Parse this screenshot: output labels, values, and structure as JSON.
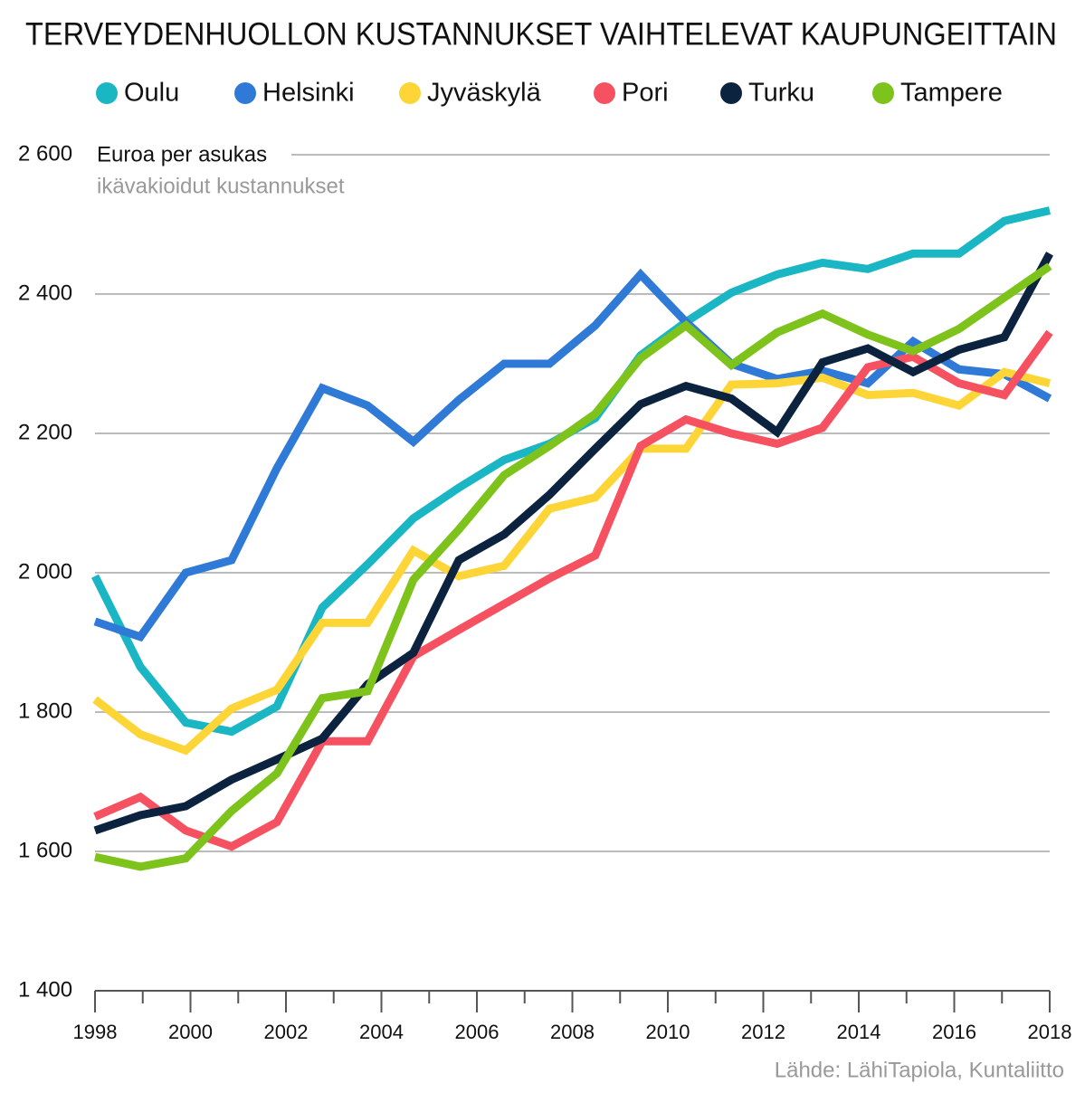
{
  "chart_data": {
    "type": "line",
    "title": "TERVEYDENHUOLLON KUSTANNUKSET VAIHTELEVAT KAUPUNGEITTAIN",
    "annotations": [
      "Euroa per asukas",
      "ikävakioidut kustannukset"
    ],
    "source": "Lähde: LähiTapiola, Kuntaliitto",
    "x": [
      1998,
      1998.95,
      1999.9,
      2000.86,
      2001.81,
      2002.76,
      2003.71,
      2004.67,
      2005.62,
      2006.57,
      2007.52,
      2008.48,
      2009.43,
      2010.38,
      2011.33,
      2012.29,
      2013.24,
      2014.19,
      2015.14,
      2016.1,
      2017.05,
      2018
    ],
    "xlim": [
      1998,
      2018
    ],
    "xticks": [
      1998,
      2000,
      2002,
      2004,
      2006,
      2008,
      2010,
      2012,
      2014,
      2016,
      2018
    ],
    "ylim": [
      1400,
      2600
    ],
    "yticks": [
      {
        "value": 1400,
        "label": "1 400"
      },
      {
        "value": 1600,
        "label": "1 600"
      },
      {
        "value": 1800,
        "label": "1 800"
      },
      {
        "value": 2000,
        "label": "2 000"
      },
      {
        "value": 2200,
        "label": "2 200"
      },
      {
        "value": 2400,
        "label": "2 400"
      },
      {
        "value": 2600,
        "label": "2 600"
      }
    ],
    "grid": true,
    "legend": "top",
    "series": [
      {
        "name": "Oulu",
        "color": "#1ab6c4",
        "values": [
          1995,
          1865,
          1785,
          1772,
          1808,
          1950,
          2012,
          2078,
          2122,
          2162,
          2185,
          2222,
          2312,
          2360,
          2402,
          2428,
          2445,
          2436,
          2458,
          2458,
          2505,
          2520
        ]
      },
      {
        "name": "Helsinki",
        "color": "#2f7ad6",
        "values": [
          1930,
          1908,
          2000,
          2018,
          2150,
          2265,
          2240,
          2188,
          2248,
          2300,
          2300,
          2355,
          2428,
          2360,
          2300,
          2278,
          2290,
          2272,
          2332,
          2292,
          2285,
          2250
        ]
      },
      {
        "name": "Jyväskylä",
        "color": "#fdd537",
        "values": [
          1818,
          1768,
          1745,
          1805,
          1832,
          1928,
          1928,
          2032,
          1995,
          2010,
          2092,
          2108,
          2178,
          2178,
          2270,
          2272,
          2280,
          2255,
          2258,
          2240,
          2288,
          2272
        ]
      },
      {
        "name": "Pori",
        "color": "#f65161",
        "values": [
          1650,
          1678,
          1630,
          1607,
          1642,
          1758,
          1758,
          1880,
          1918,
          1955,
          1992,
          2025,
          2182,
          2220,
          2200,
          2185,
          2208,
          2295,
          2310,
          2272,
          2255,
          2345
        ]
      },
      {
        "name": "Turku",
        "color": "#0c2340",
        "values": [
          1630,
          1652,
          1665,
          1703,
          1732,
          1762,
          1840,
          1885,
          2018,
          2055,
          2112,
          2178,
          2242,
          2268,
          2250,
          2202,
          2302,
          2322,
          2288,
          2320,
          2338,
          2458
        ]
      },
      {
        "name": "Tampere",
        "color": "#7dc31c",
        "values": [
          1592,
          1578,
          1590,
          1658,
          1712,
          1820,
          1830,
          1990,
          2062,
          2140,
          2182,
          2228,
          2308,
          2355,
          2298,
          2345,
          2372,
          2342,
          2318,
          2350,
          2395,
          2440
        ]
      }
    ]
  }
}
